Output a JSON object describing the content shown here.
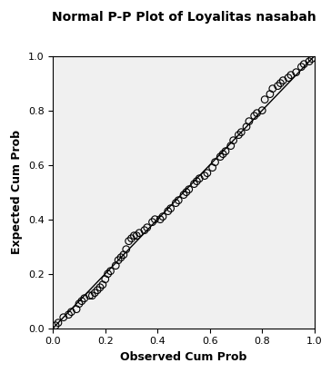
{
  "chart_data": {
    "type": "scatter",
    "title": "Normal P-P Plot of Loyalitas nasabah",
    "x_label": "Observed Cum Prob",
    "y_label": "Expected Cum Prob",
    "xlim": [
      0.0,
      1.0
    ],
    "ylim": [
      0.0,
      1.0
    ],
    "xticks": [
      0.0,
      0.2,
      0.4,
      0.6,
      0.8,
      1.0
    ],
    "yticks": [
      0.0,
      0.2,
      0.4,
      0.6,
      0.8,
      1.0
    ],
    "grid": false,
    "series": [
      {
        "type": "scatter",
        "marker": "circle",
        "color": "#000000",
        "x": [
          0.01,
          0.02,
          0.04,
          0.06,
          0.07,
          0.09,
          0.1,
          0.11,
          0.12,
          0.14,
          0.15,
          0.16,
          0.17,
          0.18,
          0.19,
          0.2,
          0.21,
          0.22,
          0.24,
          0.25,
          0.26,
          0.27,
          0.28,
          0.29,
          0.3,
          0.31,
          0.32,
          0.33,
          0.35,
          0.36,
          0.38,
          0.39,
          0.41,
          0.42,
          0.44,
          0.45,
          0.47,
          0.48,
          0.5,
          0.51,
          0.52,
          0.54,
          0.55,
          0.56,
          0.58,
          0.59,
          0.61,
          0.62,
          0.64,
          0.65,
          0.66,
          0.68,
          0.69,
          0.71,
          0.72,
          0.74,
          0.75,
          0.77,
          0.78,
          0.8,
          0.81,
          0.83,
          0.84,
          0.86,
          0.87,
          0.88,
          0.9,
          0.91,
          0.93,
          0.95,
          0.96,
          0.98,
          0.99
        ],
        "values": [
          0.01,
          0.02,
          0.04,
          0.05,
          0.06,
          0.07,
          0.09,
          0.1,
          0.11,
          0.12,
          0.12,
          0.13,
          0.14,
          0.15,
          0.16,
          0.18,
          0.2,
          0.21,
          0.23,
          0.25,
          0.26,
          0.27,
          0.29,
          0.32,
          0.33,
          0.34,
          0.34,
          0.35,
          0.36,
          0.37,
          0.39,
          0.4,
          0.4,
          0.41,
          0.43,
          0.44,
          0.46,
          0.47,
          0.49,
          0.5,
          0.51,
          0.53,
          0.54,
          0.55,
          0.56,
          0.57,
          0.59,
          0.61,
          0.63,
          0.64,
          0.65,
          0.67,
          0.69,
          0.71,
          0.72,
          0.74,
          0.76,
          0.78,
          0.79,
          0.8,
          0.84,
          0.86,
          0.88,
          0.89,
          0.9,
          0.91,
          0.92,
          0.93,
          0.94,
          0.96,
          0.97,
          0.98,
          0.99
        ]
      },
      {
        "type": "line",
        "line_style": "solid",
        "color": "#000000",
        "x": [
          0.0,
          1.0
        ],
        "values": [
          0.0,
          1.0
        ]
      }
    ]
  }
}
